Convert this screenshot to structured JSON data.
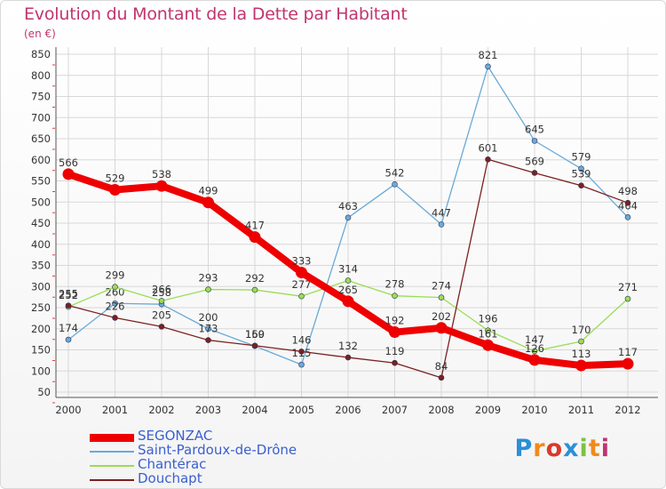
{
  "header": {
    "title": "Evolution du Montant de la Dette par Habitant",
    "unit": "(en €)"
  },
  "logo": {
    "text": "Proxiti"
  },
  "colors": {
    "title": "#c0356e",
    "grid": "#d8d8d8",
    "axis": "#555555",
    "tick_marks": "#d44"
  },
  "chart_data": {
    "type": "line",
    "title": "Evolution du Montant de la Dette par Habitant",
    "ylabel": "(en €)",
    "xlabel": "",
    "ylim": [
      50,
      850
    ],
    "yticks": [
      50,
      100,
      150,
      200,
      250,
      300,
      350,
      400,
      450,
      500,
      550,
      600,
      650,
      700,
      750,
      800,
      850
    ],
    "grid": true,
    "legend_position": "bottom-left",
    "x": [
      "2000",
      "2001",
      "2002",
      "2003",
      "2004",
      "2005",
      "2006",
      "2007",
      "2008",
      "2009",
      "2010",
      "2011",
      "2012"
    ],
    "series": [
      {
        "name": "SEGONZAC",
        "color": "#ee0000",
        "width": 8,
        "values": [
          566,
          529,
          538,
          499,
          417,
          333,
          265,
          192,
          202,
          161,
          126,
          113,
          117
        ],
        "labels": [
          "566",
          "529",
          "538",
          "499",
          "417",
          "333",
          "265",
          "192",
          "202",
          "161",
          "126",
          "113",
          "117"
        ]
      },
      {
        "name": "Saint-Pardoux-de-Drône",
        "color": "#6aaad8",
        "width": 1.3,
        "values": [
          174,
          260,
          258,
          200,
          159,
          115,
          463,
          542,
          447,
          821,
          645,
          579,
          464
        ],
        "labels": [
          "174",
          "260",
          "258",
          "200",
          "159",
          "115",
          "463",
          "542",
          "447",
          "821",
          "645",
          "579",
          "464"
        ]
      },
      {
        "name": "Chantérac",
        "color": "#99dd55",
        "width": 1.3,
        "values": [
          252,
          299,
          266,
          293,
          292,
          277,
          314,
          278,
          274,
          196,
          147,
          170,
          271
        ],
        "labels": [
          "252",
          "299",
          "266",
          "293",
          "292",
          "277",
          "314",
          "278",
          "274",
          "196",
          "147",
          "170",
          "271"
        ]
      },
      {
        "name": "Douchapt",
        "color": "#7b2020",
        "width": 1.3,
        "values": [
          255,
          226,
          205,
          173,
          160,
          146,
          132,
          119,
          84,
          601,
          569,
          539,
          498
        ],
        "labels": [
          "255",
          "226",
          "205",
          "173",
          "160",
          "146",
          "132",
          "119",
          "84",
          "601",
          "569",
          "539",
          "498"
        ]
      }
    ]
  }
}
